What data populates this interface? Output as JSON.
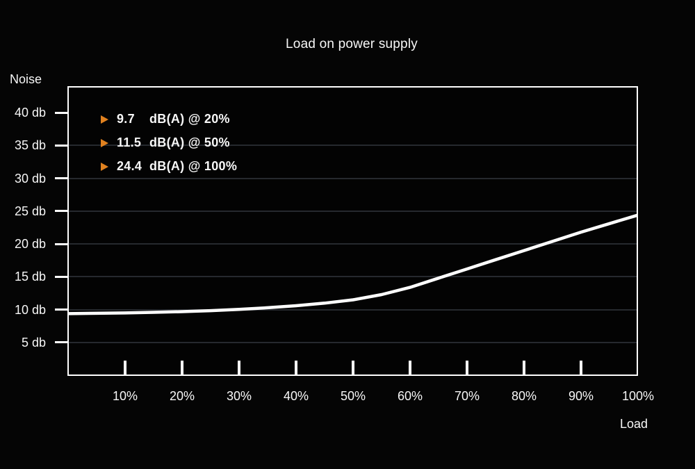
{
  "chart_data": {
    "type": "line",
    "title": "Load on power supply",
    "y_axis_title": "Noise",
    "x_axis_title": "Load",
    "axis_range": {
      "x_percent": [
        0,
        100
      ],
      "y_db": [
        5,
        40
      ]
    },
    "grid": "horizontal-only",
    "gridline_dbs": [
      5,
      10,
      15,
      20,
      25,
      30,
      35
    ],
    "y_ticks": [
      {
        "db": 40,
        "label": "40 db"
      },
      {
        "db": 35,
        "label": "35 db"
      },
      {
        "db": 30,
        "label": "30 db"
      },
      {
        "db": 25,
        "label": "25 db"
      },
      {
        "db": 20,
        "label": "20 db"
      },
      {
        "db": 15,
        "label": "15 db"
      },
      {
        "db": 10,
        "label": "10 db"
      },
      {
        "db": 5,
        "label": "5 db"
      }
    ],
    "x_ticks": [
      {
        "load": 10,
        "label": "10%",
        "tick": true
      },
      {
        "load": 20,
        "label": "20%",
        "tick": true
      },
      {
        "load": 30,
        "label": "30%",
        "tick": true
      },
      {
        "load": 40,
        "label": "40%",
        "tick": true
      },
      {
        "load": 50,
        "label": "50%",
        "tick": true
      },
      {
        "load": 60,
        "label": "60%",
        "tick": true
      },
      {
        "load": 70,
        "label": "70%",
        "tick": true
      },
      {
        "load": 80,
        "label": "80%",
        "tick": true
      },
      {
        "load": 90,
        "label": "90%",
        "tick": true
      },
      {
        "load": 100,
        "label": "100%",
        "tick": false
      }
    ],
    "series": [
      {
        "name": "noise-vs-load",
        "color": "#ffffff",
        "points_load_db": [
          [
            0,
            9.4
          ],
          [
            5,
            9.45
          ],
          [
            10,
            9.5
          ],
          [
            15,
            9.6
          ],
          [
            20,
            9.7
          ],
          [
            25,
            9.85
          ],
          [
            30,
            10.05
          ],
          [
            35,
            10.3
          ],
          [
            40,
            10.6
          ],
          [
            45,
            11.0
          ],
          [
            50,
            11.5
          ],
          [
            55,
            12.3
          ],
          [
            60,
            13.4
          ],
          [
            65,
            14.8
          ],
          [
            70,
            16.2
          ],
          [
            75,
            17.6
          ],
          [
            80,
            19.0
          ],
          [
            85,
            20.4
          ],
          [
            90,
            21.8
          ],
          [
            95,
            23.1
          ],
          [
            100,
            24.4
          ]
        ]
      }
    ],
    "callouts": [
      {
        "value": "9.7",
        "text": "dB(A) @ 20%"
      },
      {
        "value": "11.5",
        "text": "dB(A) @ 50%"
      },
      {
        "value": "24.4",
        "text": "dB(A) @ 100%"
      }
    ],
    "colors": {
      "background": "#050505",
      "frame": "#ffffff",
      "line": "#ffffff",
      "grid": "#26292e",
      "text": "#f7f7f7",
      "accent_orange": "#e0811f"
    }
  }
}
